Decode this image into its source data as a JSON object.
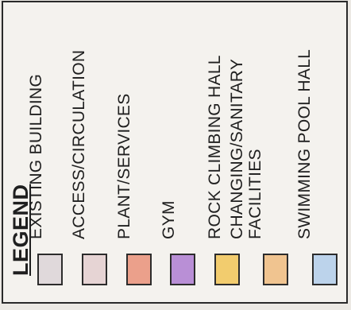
{
  "legend": {
    "heading": "LEGEND",
    "items": [
      {
        "label": "EXISTING BUILDING",
        "label_line2": "",
        "color": "#e0d9db"
      },
      {
        "label": "ACCESS/CIRCULATION",
        "label_line2": "",
        "color": "#e6d4d4"
      },
      {
        "label": "PLANT/SERVICES",
        "label_line2": "",
        "color": "#eba08b"
      },
      {
        "label": "GYM",
        "label_line2": "",
        "color": "#b98fd6"
      },
      {
        "label": "ROCK CLIMBING HALL",
        "label_line2": "",
        "color": "#f2cc6e"
      },
      {
        "label": "CHANGING/SANITARY",
        "label_line2": "FACILITIES",
        "color": "#f0c490"
      },
      {
        "label": "SWIMMING POOL HALL",
        "label_line2": "",
        "color": "#bcd3eb"
      }
    ]
  }
}
